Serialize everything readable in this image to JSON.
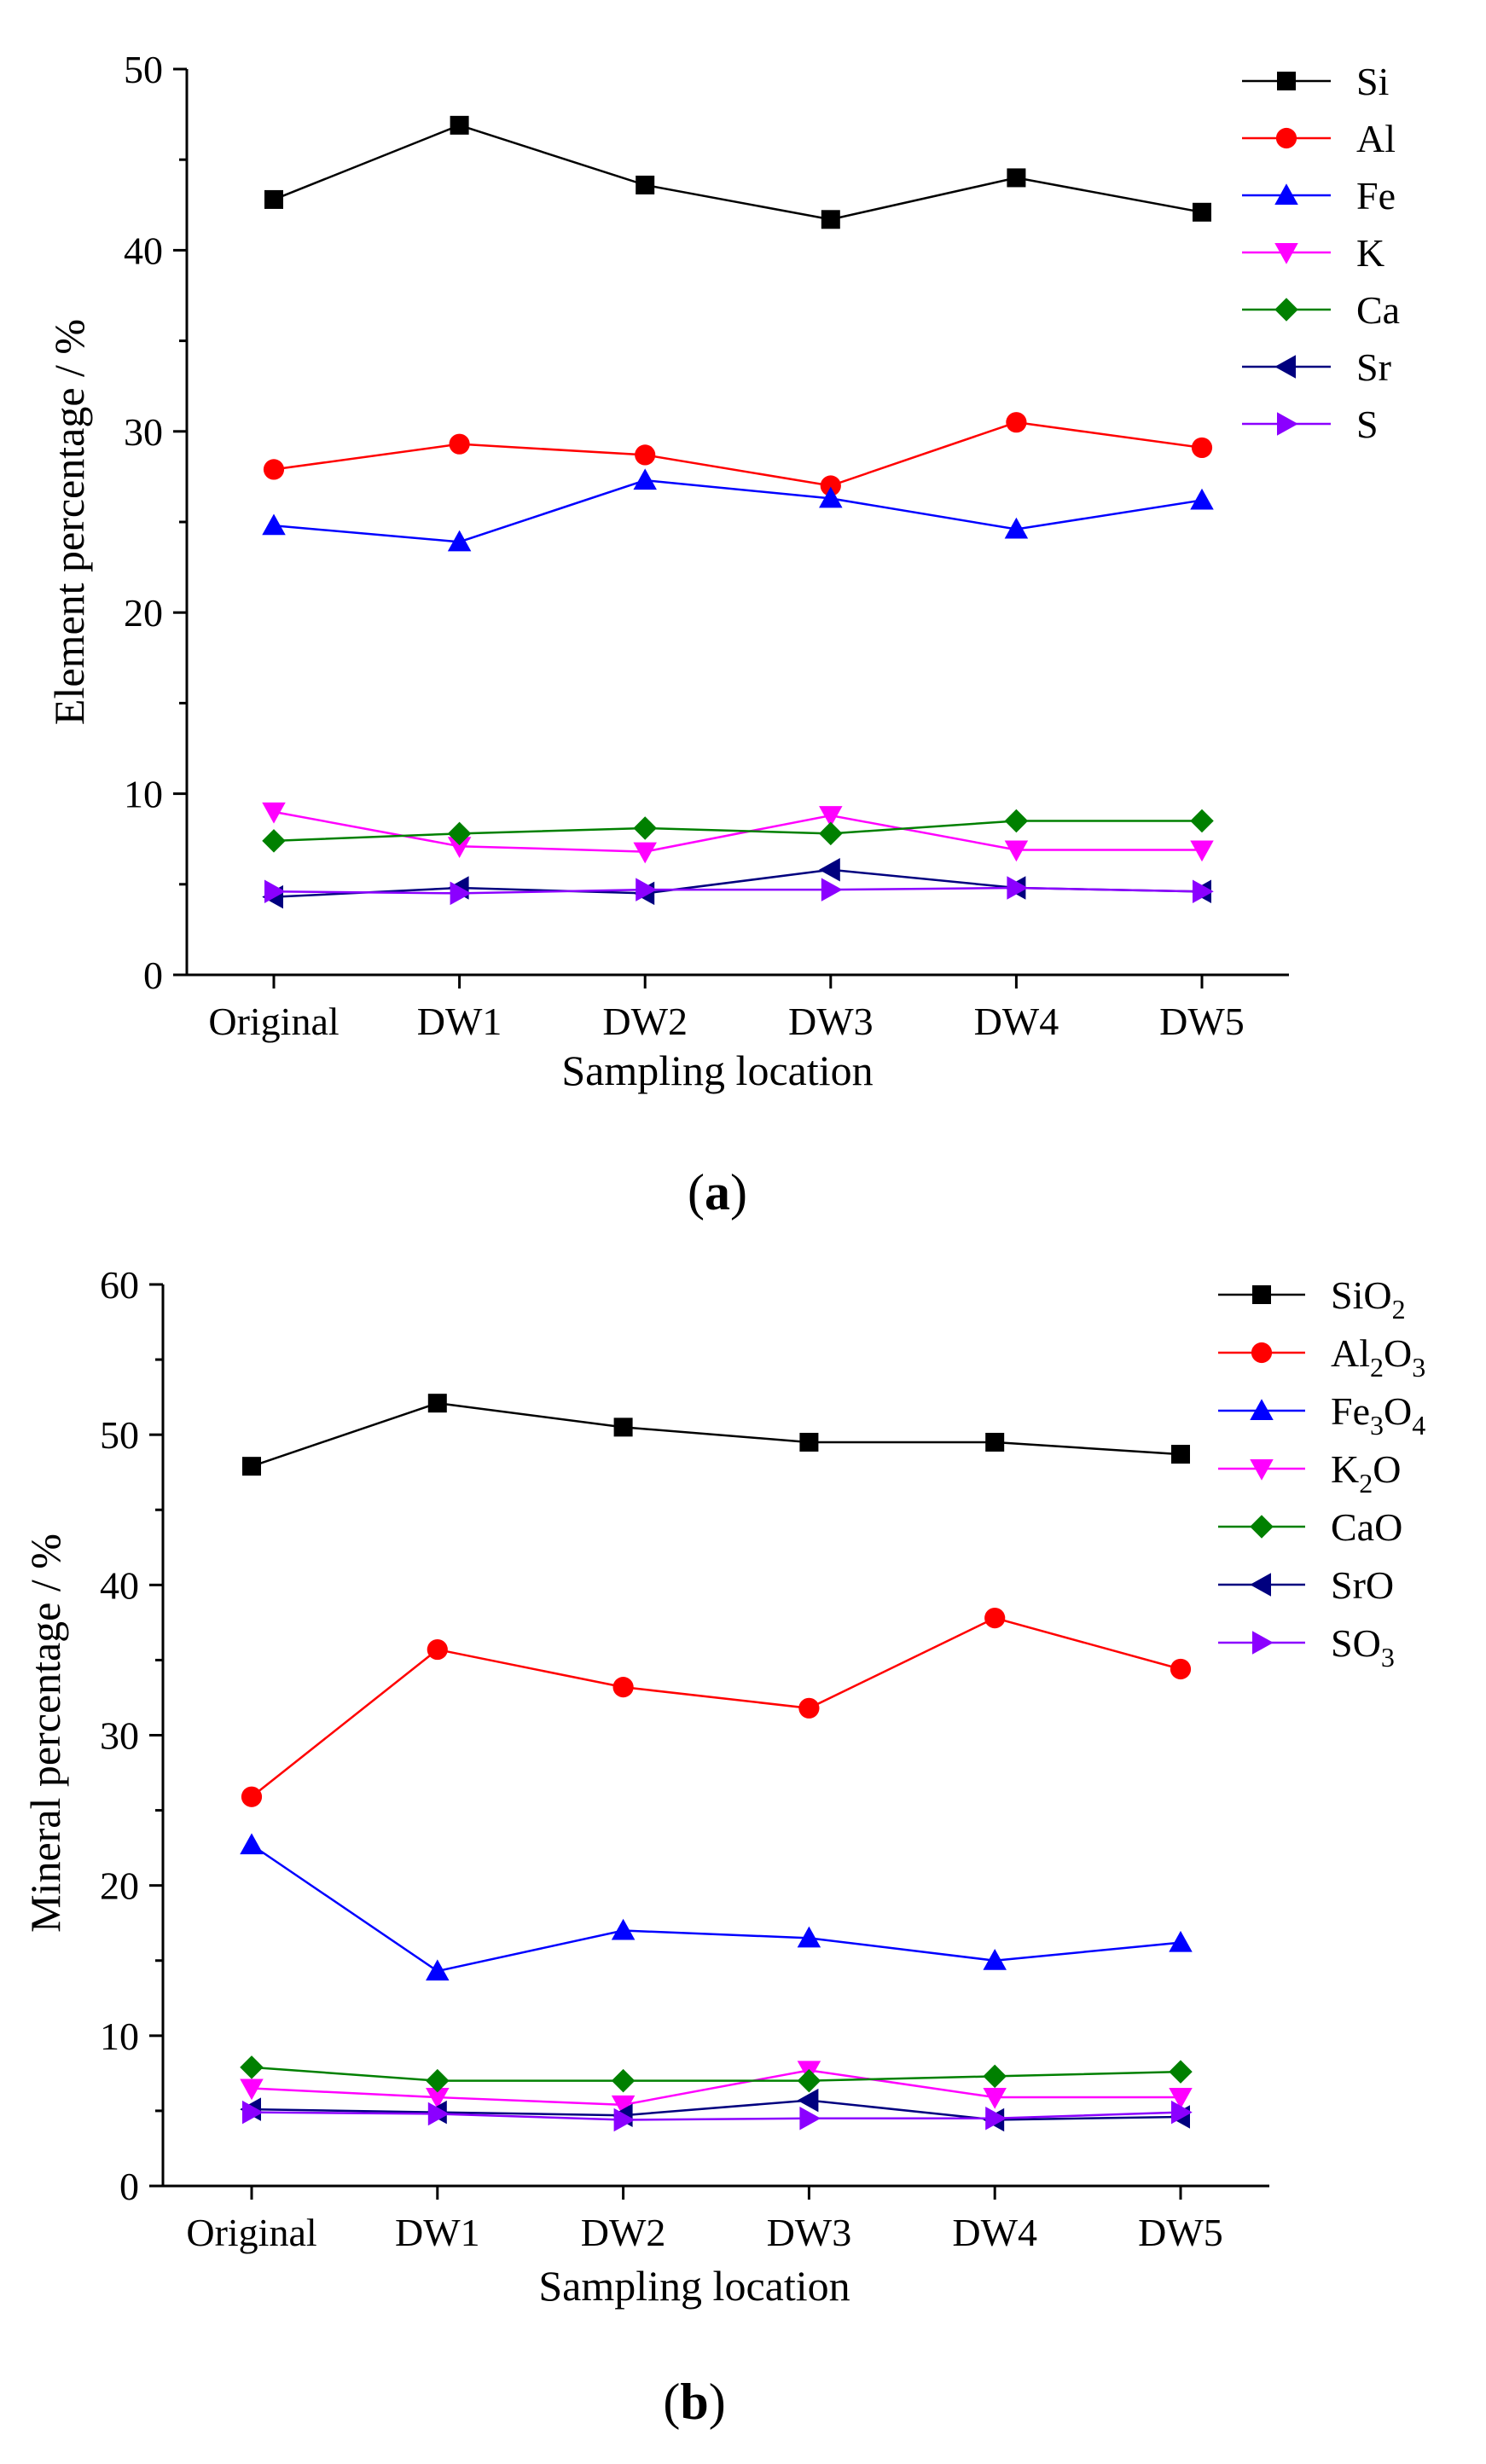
{
  "chart_data": [
    {
      "type": "line",
      "panel_label": "a",
      "xlabel": "Sampling location",
      "ylabel": "Element percentage / %",
      "categories": [
        "Original",
        "DW1",
        "DW2",
        "DW3",
        "DW4",
        "DW5"
      ],
      "ylim": [
        0,
        50
      ],
      "yticks": [
        0,
        10,
        20,
        30,
        40,
        50
      ],
      "grid": false,
      "legend_position": "top-right",
      "series": [
        {
          "name": "Si",
          "sub": "",
          "color": "#000000",
          "marker": "square",
          "values": [
            42.8,
            46.9,
            43.6,
            41.7,
            44.0,
            42.1
          ]
        },
        {
          "name": "Al",
          "sub": "",
          "color": "#ff0000",
          "marker": "circle",
          "values": [
            27.9,
            29.3,
            28.7,
            27.0,
            30.5,
            29.1
          ]
        },
        {
          "name": "Fe",
          "sub": "",
          "color": "#0000ff",
          "marker": "triangle-up",
          "values": [
            24.8,
            23.9,
            27.3,
            26.3,
            24.6,
            26.2
          ]
        },
        {
          "name": "K",
          "sub": "",
          "color": "#ff00ff",
          "marker": "triangle-down",
          "values": [
            9.0,
            7.1,
            6.8,
            8.8,
            6.9,
            6.9
          ]
        },
        {
          "name": "Ca",
          "sub": "",
          "color": "#008000",
          "marker": "diamond",
          "values": [
            7.4,
            7.8,
            8.1,
            7.8,
            8.5,
            8.5
          ]
        },
        {
          "name": "Sr",
          "sub": "",
          "color": "#00007f",
          "marker": "triangle-left",
          "values": [
            4.3,
            4.8,
            4.5,
            5.8,
            4.8,
            4.6
          ]
        },
        {
          "name": "S",
          "sub": "",
          "color": "#8b00ff",
          "marker": "triangle-right",
          "values": [
            4.6,
            4.5,
            4.7,
            4.7,
            4.8,
            4.6
          ]
        }
      ]
    },
    {
      "type": "line",
      "panel_label": "b",
      "xlabel": "Sampling location",
      "ylabel": "Mineral percentage / %",
      "categories": [
        "Original",
        "DW1",
        "DW2",
        "DW3",
        "DW4",
        "DW5"
      ],
      "ylim": [
        0,
        60
      ],
      "yticks": [
        0,
        10,
        20,
        30,
        40,
        50,
        60
      ],
      "grid": false,
      "legend_position": "top-right",
      "series": [
        {
          "name": "SiO",
          "sub": "2",
          "tail": "",
          "color": "#000000",
          "marker": "square",
          "values": [
            47.9,
            52.1,
            50.5,
            49.5,
            49.5,
            48.7
          ]
        },
        {
          "name": "Al",
          "sub": "2",
          "tail": "O",
          "sub2": "3",
          "color": "#ff0000",
          "marker": "circle",
          "values": [
            25.9,
            35.7,
            33.2,
            31.8,
            37.8,
            34.4
          ]
        },
        {
          "name": "Fe",
          "sub": "3",
          "tail": "O",
          "sub2": "4",
          "color": "#0000ff",
          "marker": "triangle-up",
          "values": [
            22.7,
            14.3,
            17.0,
            16.5,
            15.0,
            16.2
          ]
        },
        {
          "name": "K",
          "sub": "2",
          "tail": "O",
          "sub2": "",
          "color": "#ff00ff",
          "marker": "triangle-down",
          "values": [
            6.5,
            5.9,
            5.4,
            7.7,
            5.9,
            5.9
          ]
        },
        {
          "name": "CaO",
          "sub": "",
          "tail": "",
          "color": "#008000",
          "marker": "diamond",
          "values": [
            7.9,
            7.0,
            7.0,
            7.0,
            7.3,
            7.6
          ]
        },
        {
          "name": "SrO",
          "sub": "",
          "tail": "",
          "color": "#00007f",
          "marker": "triangle-left",
          "values": [
            5.1,
            4.9,
            4.7,
            5.7,
            4.4,
            4.6
          ]
        },
        {
          "name": "SO",
          "sub": "3",
          "tail": "",
          "color": "#8b00ff",
          "marker": "triangle-right",
          "values": [
            4.9,
            4.8,
            4.4,
            4.5,
            4.5,
            4.9
          ]
        }
      ]
    }
  ]
}
